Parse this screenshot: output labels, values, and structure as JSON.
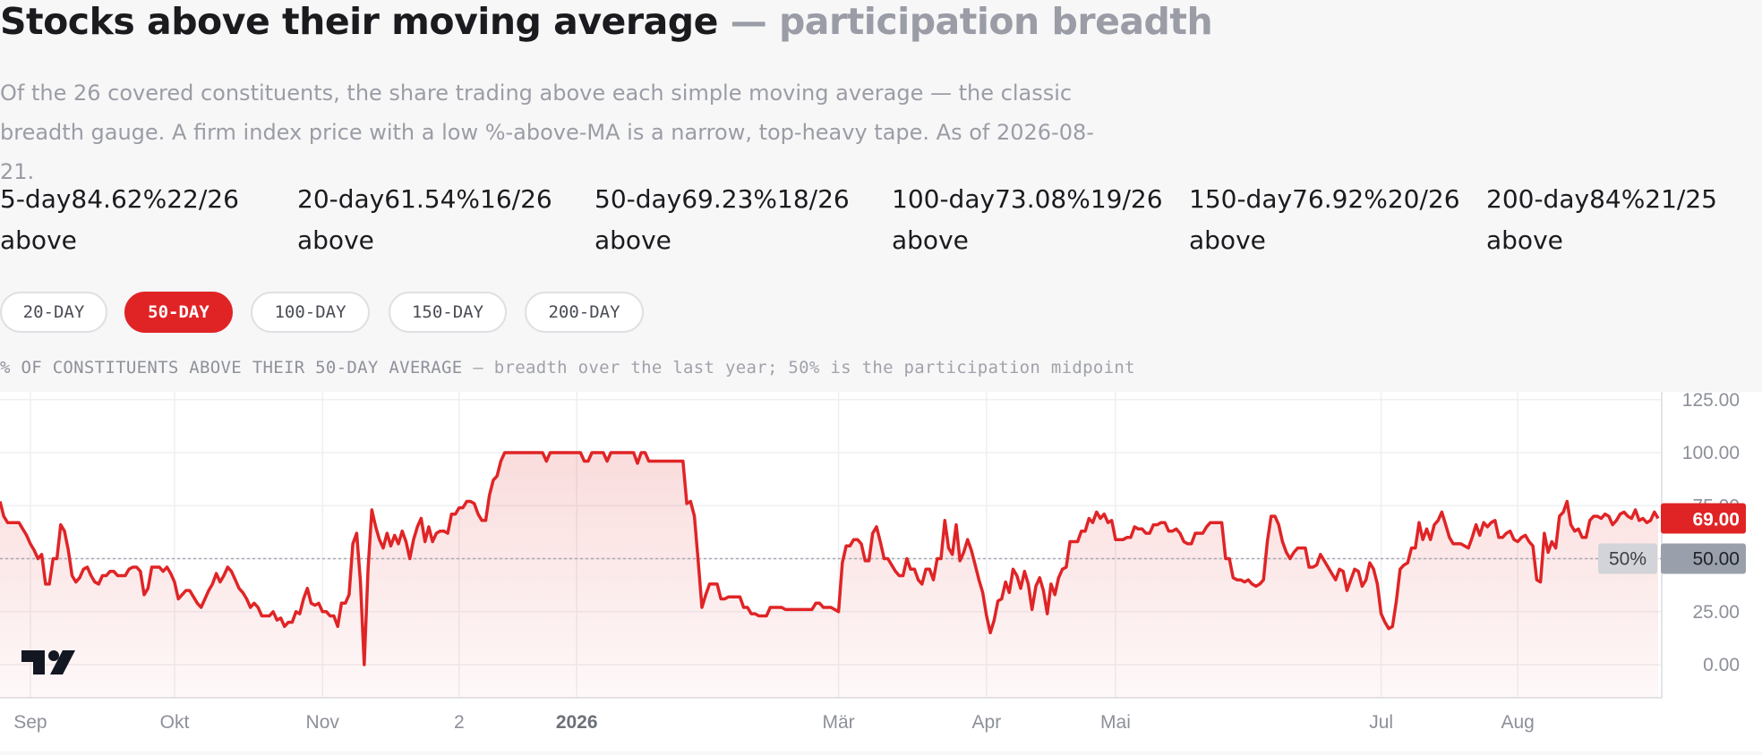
{
  "header": {
    "title": "Stocks above their moving average",
    "subtitle": "— participation breadth",
    "description": "Of the 26 covered constituents, the share trading above each simple moving average — the classic breadth gauge. A firm index price with a low %-above-MA is a narrow, top-heavy tape. As of 2026-08-21."
  },
  "stats": [
    {
      "label": "5-day",
      "pct": "84.62%",
      "count": "22/26",
      "suffix": "above"
    },
    {
      "label": "20-day",
      "pct": "61.54%",
      "count": "16/26",
      "suffix": "above"
    },
    {
      "label": "50-day",
      "pct": "69.23%",
      "count": "18/26",
      "suffix": "above"
    },
    {
      "label": "100-day",
      "pct": "73.08%",
      "count": "19/26",
      "suffix": "above"
    },
    {
      "label": "150-day",
      "pct": "76.92%",
      "count": "20/26",
      "suffix": "above"
    },
    {
      "label": "200-day",
      "pct": "84%",
      "count": "21/25",
      "suffix": "above"
    }
  ],
  "tabs": [
    {
      "label": "20-DAY",
      "active": false
    },
    {
      "label": "50-DAY",
      "active": true
    },
    {
      "label": "100-DAY",
      "active": false
    },
    {
      "label": "150-DAY",
      "active": false
    },
    {
      "label": "200-DAY",
      "active": false
    }
  ],
  "caption": {
    "main": "% OF CONSTITUENTS ABOVE THEIR 50-DAY AVERAGE",
    "note": " — breadth over the last year; 50% is the participation midpoint"
  },
  "colors": {
    "series": "#e02426",
    "midline_badge": "#9aa0ab",
    "active_tab": "#e02426"
  },
  "chart_data": {
    "type": "area",
    "title": "% OF CONSTITUENTS ABOVE THEIR 50-DAY AVERAGE",
    "ylim": [
      -12,
      128
    ],
    "y_ticks": [
      "125.00",
      "100.00",
      "75.00",
      "50.00",
      "25.00",
      "0.00"
    ],
    "y_tick_values": [
      125,
      100,
      75,
      50,
      25,
      0
    ],
    "x_tick_labels": [
      "Sep",
      "Okt",
      "Nov",
      "2",
      "2026",
      "Mär",
      "Apr",
      "Mai",
      "Jul",
      "Aug"
    ],
    "x_tick_index": [
      8,
      46,
      85,
      121,
      152,
      221,
      260,
      294,
      364,
      400
    ],
    "last_value_label": "69.00",
    "midline_value": 50,
    "midline_label": "50%",
    "midline_axis_label": "50.00",
    "watermark": "TV",
    "grid": true,
    "series": [
      {
        "values": [
          77,
          70,
          67,
          67,
          67,
          67,
          64,
          61,
          57,
          54,
          50,
          52,
          38,
          38,
          50,
          50,
          66,
          63,
          54,
          42,
          39,
          41,
          45,
          46,
          42,
          39,
          38,
          42,
          42,
          44,
          44,
          42,
          42,
          42,
          45,
          46,
          46,
          44,
          33,
          36,
          46,
          46,
          46,
          44,
          46,
          43,
          39,
          31,
          33,
          35,
          35,
          32,
          29,
          27,
          31,
          35,
          38,
          43,
          39,
          42,
          46,
          44,
          40,
          36,
          34,
          31,
          27,
          29,
          27,
          23,
          23,
          23,
          25,
          21,
          22,
          18,
          20,
          20,
          25,
          24,
          31,
          36,
          29,
          28,
          29,
          25,
          25,
          23,
          23,
          18,
          29,
          29,
          33,
          57,
          62,
          39,
          0,
          45,
          73,
          65,
          59,
          55,
          62,
          56,
          61,
          57,
          63,
          58,
          50,
          59,
          65,
          69,
          58,
          65,
          58,
          62,
          63,
          63,
          62,
          71,
          71,
          74,
          74,
          77,
          77,
          76,
          71,
          68,
          68,
          80,
          87,
          89,
          96,
          100,
          100,
          100,
          100,
          100,
          100,
          100,
          100,
          100,
          100,
          100,
          96,
          100,
          100,
          100,
          100,
          100,
          100,
          100,
          100,
          100,
          96,
          96,
          100,
          100,
          100,
          100,
          96,
          100,
          100,
          100,
          100,
          100,
          100,
          100,
          95,
          100,
          100,
          96,
          96,
          96,
          96,
          96,
          96,
          96,
          96,
          96,
          96,
          76,
          77,
          70,
          49,
          27,
          33,
          38,
          38,
          38,
          31,
          31,
          32,
          32,
          32,
          32,
          27,
          27,
          24,
          24,
          23,
          23,
          23,
          27,
          27,
          27,
          27,
          26,
          26,
          26,
          26,
          26,
          26,
          26,
          26,
          29,
          29,
          27,
          27,
          27,
          26,
          25,
          48,
          56,
          56,
          59,
          59,
          57,
          49,
          49,
          62,
          65,
          58,
          50,
          50,
          47,
          44,
          42,
          42,
          50,
          45,
          45,
          40,
          38,
          45,
          45,
          40,
          50,
          50,
          68,
          55,
          52,
          66,
          49,
          53,
          59,
          54,
          47,
          40,
          34,
          23,
          15,
          21,
          30,
          31,
          39,
          34,
          45,
          42,
          36,
          44,
          38,
          26,
          37,
          41,
          35,
          24,
          38,
          33,
          41,
          45,
          46,
          58,
          58,
          58,
          63,
          63,
          69,
          67,
          72,
          69,
          71,
          67,
          68,
          59,
          59,
          59,
          60,
          60,
          65,
          64,
          64,
          62,
          62,
          66,
          66,
          67,
          67,
          63,
          63,
          64,
          62,
          58,
          57,
          57,
          62,
          62,
          62,
          65,
          67,
          67,
          67,
          67,
          50,
          50,
          41,
          40,
          40,
          39,
          40,
          38,
          37,
          38,
          40,
          58,
          70,
          70,
          66,
          58,
          53,
          50,
          53,
          55,
          55,
          55,
          46,
          46,
          47,
          52,
          49,
          46,
          43,
          40,
          45,
          44,
          35,
          40,
          45,
          44,
          37,
          40,
          48,
          45,
          38,
          24,
          20,
          17,
          18,
          30,
          45,
          47,
          48,
          55,
          55,
          67,
          59,
          64,
          59,
          66,
          68,
          72,
          66,
          60,
          57,
          57,
          57,
          56,
          55,
          60,
          66,
          61,
          67,
          65,
          67,
          68,
          60,
          60,
          62,
          63,
          59,
          58,
          60,
          61,
          58,
          56,
          40,
          39,
          62,
          53,
          58,
          55,
          70,
          72,
          77,
          66,
          63,
          64,
          60,
          60,
          68,
          70,
          70,
          69,
          71,
          70,
          66,
          68,
          71,
          72,
          70,
          69,
          73,
          68,
          69,
          67,
          68,
          72,
          69
        ]
      }
    ]
  }
}
